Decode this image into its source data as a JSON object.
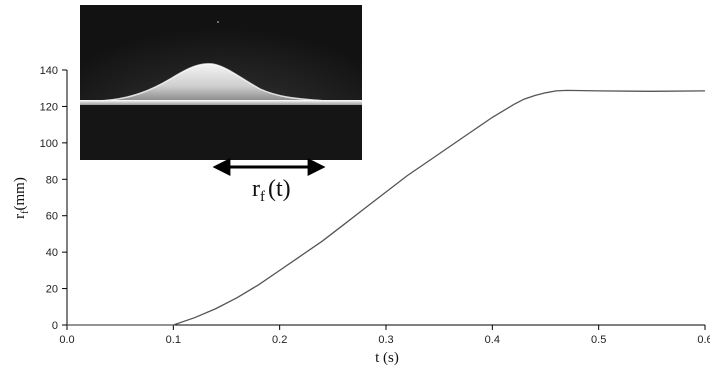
{
  "chart_data": {
    "type": "line",
    "title": "",
    "xlabel": "t (s)",
    "ylabel": {
      "main": "r",
      "sub": "f",
      "unit": "(mm)"
    },
    "xlim": [
      0.0,
      0.6
    ],
    "ylim": [
      0,
      140
    ],
    "x_ticks": [
      "0.0",
      "0.1",
      "0.2",
      "0.3",
      "0.4",
      "0.5",
      "0.6"
    ],
    "y_ticks": [
      "0",
      "20",
      "40",
      "60",
      "80",
      "100",
      "120",
      "140"
    ],
    "grid": false,
    "legend": "none",
    "line_color": "#555555",
    "series": [
      {
        "x": [
          0.0,
          0.02,
          0.05,
          0.08,
          0.1,
          0.12,
          0.14,
          0.16,
          0.18,
          0.2,
          0.22,
          0.24,
          0.26,
          0.28,
          0.3,
          0.32,
          0.34,
          0.36,
          0.38,
          0.4,
          0.42,
          0.43,
          0.44,
          0.45,
          0.46,
          0.47,
          0.5,
          0.55,
          0.6
        ],
        "y": [
          0,
          0,
          0,
          0,
          0,
          4,
          9,
          15,
          22,
          30,
          38,
          46,
          55,
          64,
          73,
          82,
          90,
          98,
          106,
          114,
          121,
          124,
          126,
          127.5,
          128.5,
          128.8,
          128.5,
          128.3,
          128.5
        ]
      }
    ],
    "inset": {
      "caption": {
        "main": "r",
        "sub": "f",
        "arg": "(t)"
      },
      "description_colors": {
        "background": "#1a1a1a",
        "glow": "#f2f2f2"
      }
    }
  }
}
